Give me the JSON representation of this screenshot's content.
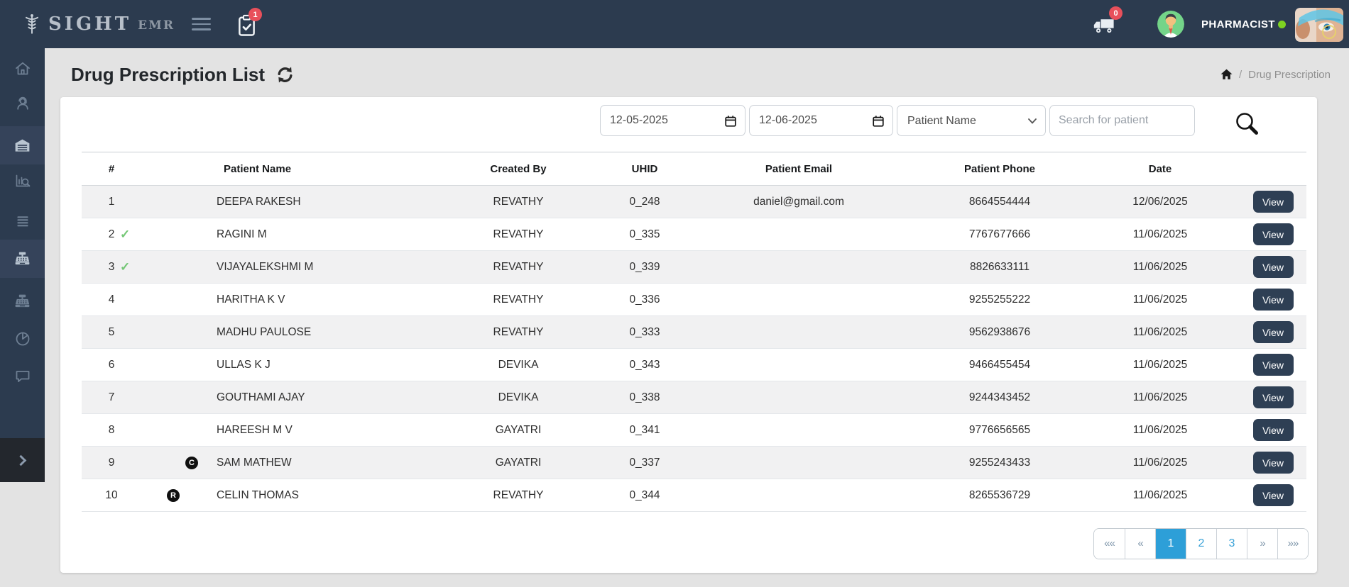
{
  "header": {
    "logo": {
      "brand": "SIGHT",
      "suffix": "EMR"
    },
    "tasks_badge": "1",
    "ambulance_badge": "0",
    "user_role": "PHARMACIST"
  },
  "sidebar": {
    "items": [
      {
        "name": "home",
        "active": false
      },
      {
        "name": "front-office",
        "active": false
      },
      {
        "name": "pharmacy",
        "active": true
      },
      {
        "name": "investigation",
        "active": false
      },
      {
        "name": "records",
        "active": false
      },
      {
        "name": "billing",
        "active": true
      },
      {
        "name": "billing-alt",
        "active": false
      },
      {
        "name": "reports",
        "active": false
      },
      {
        "name": "messages",
        "active": false
      }
    ]
  },
  "page": {
    "title": "Drug Prescription List",
    "breadcrumb": {
      "separator": "/",
      "current": "Drug Prescription"
    }
  },
  "filters": {
    "from_date": "12-05-2025",
    "to_date": "12-06-2025",
    "search_type": "Patient Name",
    "search_placeholder": "Search for patient"
  },
  "table": {
    "columns": [
      "#",
      "Patient Name",
      "Created By",
      "UHID",
      "Patient Email",
      "Patient Phone",
      "Date",
      ""
    ],
    "action_label": "View",
    "rows": [
      {
        "num": "1",
        "badge": null,
        "name": "DEEPA RAKESH",
        "created_by": "REVATHY",
        "uhid": "0_248",
        "email": "daniel@gmail.com",
        "phone": "8664554444",
        "date": "12/06/2025"
      },
      {
        "num": "2",
        "badge": "check",
        "name": "RAGINI M",
        "created_by": "REVATHY",
        "uhid": "0_335",
        "email": "",
        "phone": "7767677666",
        "date": "11/06/2025"
      },
      {
        "num": "3",
        "badge": "check",
        "name": "VIJAYALEKSHMI M",
        "created_by": "REVATHY",
        "uhid": "0_339",
        "email": "",
        "phone": "8826633111",
        "date": "11/06/2025"
      },
      {
        "num": "4",
        "badge": null,
        "name": "HARITHA K V",
        "created_by": "REVATHY",
        "uhid": "0_336",
        "email": "",
        "phone": "9255255222",
        "date": "11/06/2025"
      },
      {
        "num": "5",
        "badge": null,
        "name": "MADHU PAULOSE",
        "created_by": "REVATHY",
        "uhid": "0_333",
        "email": "",
        "phone": "9562938676",
        "date": "11/06/2025"
      },
      {
        "num": "6",
        "badge": null,
        "name": "ULLAS K J",
        "created_by": "DEVIKA",
        "uhid": "0_343",
        "email": "",
        "phone": "9466455454",
        "date": "11/06/2025"
      },
      {
        "num": "7",
        "badge": null,
        "name": "GOUTHAMI AJAY",
        "created_by": "DEVIKA",
        "uhid": "0_338",
        "email": "",
        "phone": "9244343452",
        "date": "11/06/2025"
      },
      {
        "num": "8",
        "badge": null,
        "name": "HAREESH M V",
        "created_by": "GAYATRI",
        "uhid": "0_341",
        "email": "",
        "phone": "9776656565",
        "date": "11/06/2025"
      },
      {
        "num": "9",
        "badge": "c-circle",
        "name": "SAM MATHEW",
        "created_by": "GAYATRI",
        "uhid": "0_337",
        "email": "",
        "phone": "9255243433",
        "date": "11/06/2025"
      },
      {
        "num": "10",
        "badge": "r-circle",
        "name": "CELIN THOMAS",
        "created_by": "REVATHY",
        "uhid": "0_344",
        "email": "",
        "phone": "8265536729",
        "date": "11/06/2025"
      }
    ]
  },
  "pagination": {
    "items": [
      "««",
      "«",
      "1",
      "2",
      "3",
      "»",
      "»»"
    ],
    "active": "1",
    "arrows": [
      "««",
      "«",
      "»",
      "»»"
    ]
  },
  "colors": {
    "navy": "#2c3b4f",
    "accent_blue": "#2d9fd8",
    "success_green": "#74c776",
    "badge_red": "#e8505b",
    "online_green": "#7ed321",
    "page_bg": "#e3e3e3"
  }
}
